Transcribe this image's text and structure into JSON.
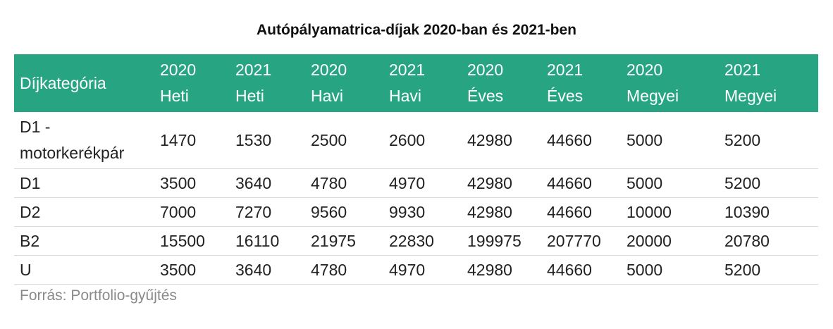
{
  "chart_data": {
    "type": "table",
    "title": "Autópályamatrica-díjak 2020-ban és 2021-ben",
    "columns": [
      {
        "line1": "Díjkategória",
        "line2": ""
      },
      {
        "line1": "2020",
        "line2": "Heti"
      },
      {
        "line1": "2021",
        "line2": "Heti"
      },
      {
        "line1": "2020",
        "line2": "Havi"
      },
      {
        "line1": "2021",
        "line2": "Havi"
      },
      {
        "line1": "2020",
        "line2": "Éves"
      },
      {
        "line1": "2021",
        "line2": "Éves"
      },
      {
        "line1": "2020",
        "line2": "Megyei"
      },
      {
        "line1": "2021",
        "line2": "Megyei"
      }
    ],
    "rows": [
      {
        "category": "D1 - motorkerékpár",
        "values": [
          "1470",
          "1530",
          "2500",
          "2600",
          "42980",
          "44660",
          "5000",
          "5200"
        ]
      },
      {
        "category": "D1",
        "values": [
          "3500",
          "3640",
          "4780",
          "4970",
          "42980",
          "44660",
          "5000",
          "5200"
        ]
      },
      {
        "category": "D2",
        "values": [
          "7000",
          "7270",
          "9560",
          "9930",
          "42980",
          "44660",
          "10000",
          "10390"
        ]
      },
      {
        "category": "B2",
        "values": [
          "15500",
          "16110",
          "21975",
          "22830",
          "199975",
          "207770",
          "20000",
          "20780"
        ]
      },
      {
        "category": "U",
        "values": [
          "3500",
          "3640",
          "4780",
          "4970",
          "42980",
          "44660",
          "5000",
          "5200"
        ]
      }
    ],
    "source": "Forrás: Portfolio-gyűjtés"
  },
  "colors": {
    "header_background": "#27a583",
    "header_text": "#ffffff",
    "row_divider": "#d9d9d9",
    "source_text": "#8a8a8a"
  }
}
